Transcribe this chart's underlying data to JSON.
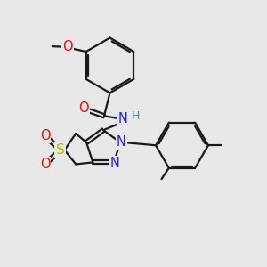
{
  "bg_color": "#e8e8e8",
  "bond_color": "#1a1a1a",
  "bond_width": 1.6,
  "atom_colors": {
    "O": "#ff0000",
    "N": "#2020ff",
    "S": "#b8b800",
    "H": "#4a8f8f",
    "C": "#1a1a1a"
  },
  "font_size": 10.5,
  "font_size_small": 9
}
